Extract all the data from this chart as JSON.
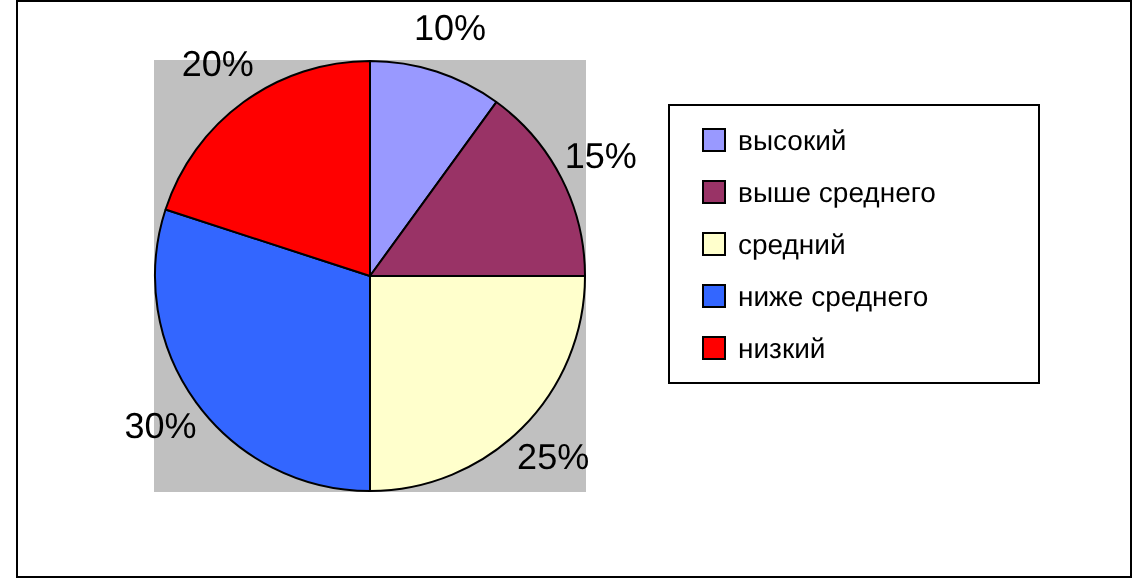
{
  "chart_data": {
    "type": "pie",
    "categories": [
      "высокий",
      "выше среднего",
      "средний",
      "ниже среднего",
      "низкий"
    ],
    "values": [
      10,
      15,
      25,
      30,
      20
    ],
    "colors": [
      "#9999ff",
      "#993366",
      "#ffffcc",
      "#3366ff",
      "#ff0000"
    ],
    "value_labels": [
      "10%",
      "15%",
      "25%",
      "30%",
      "20%"
    ],
    "legend": "right"
  }
}
